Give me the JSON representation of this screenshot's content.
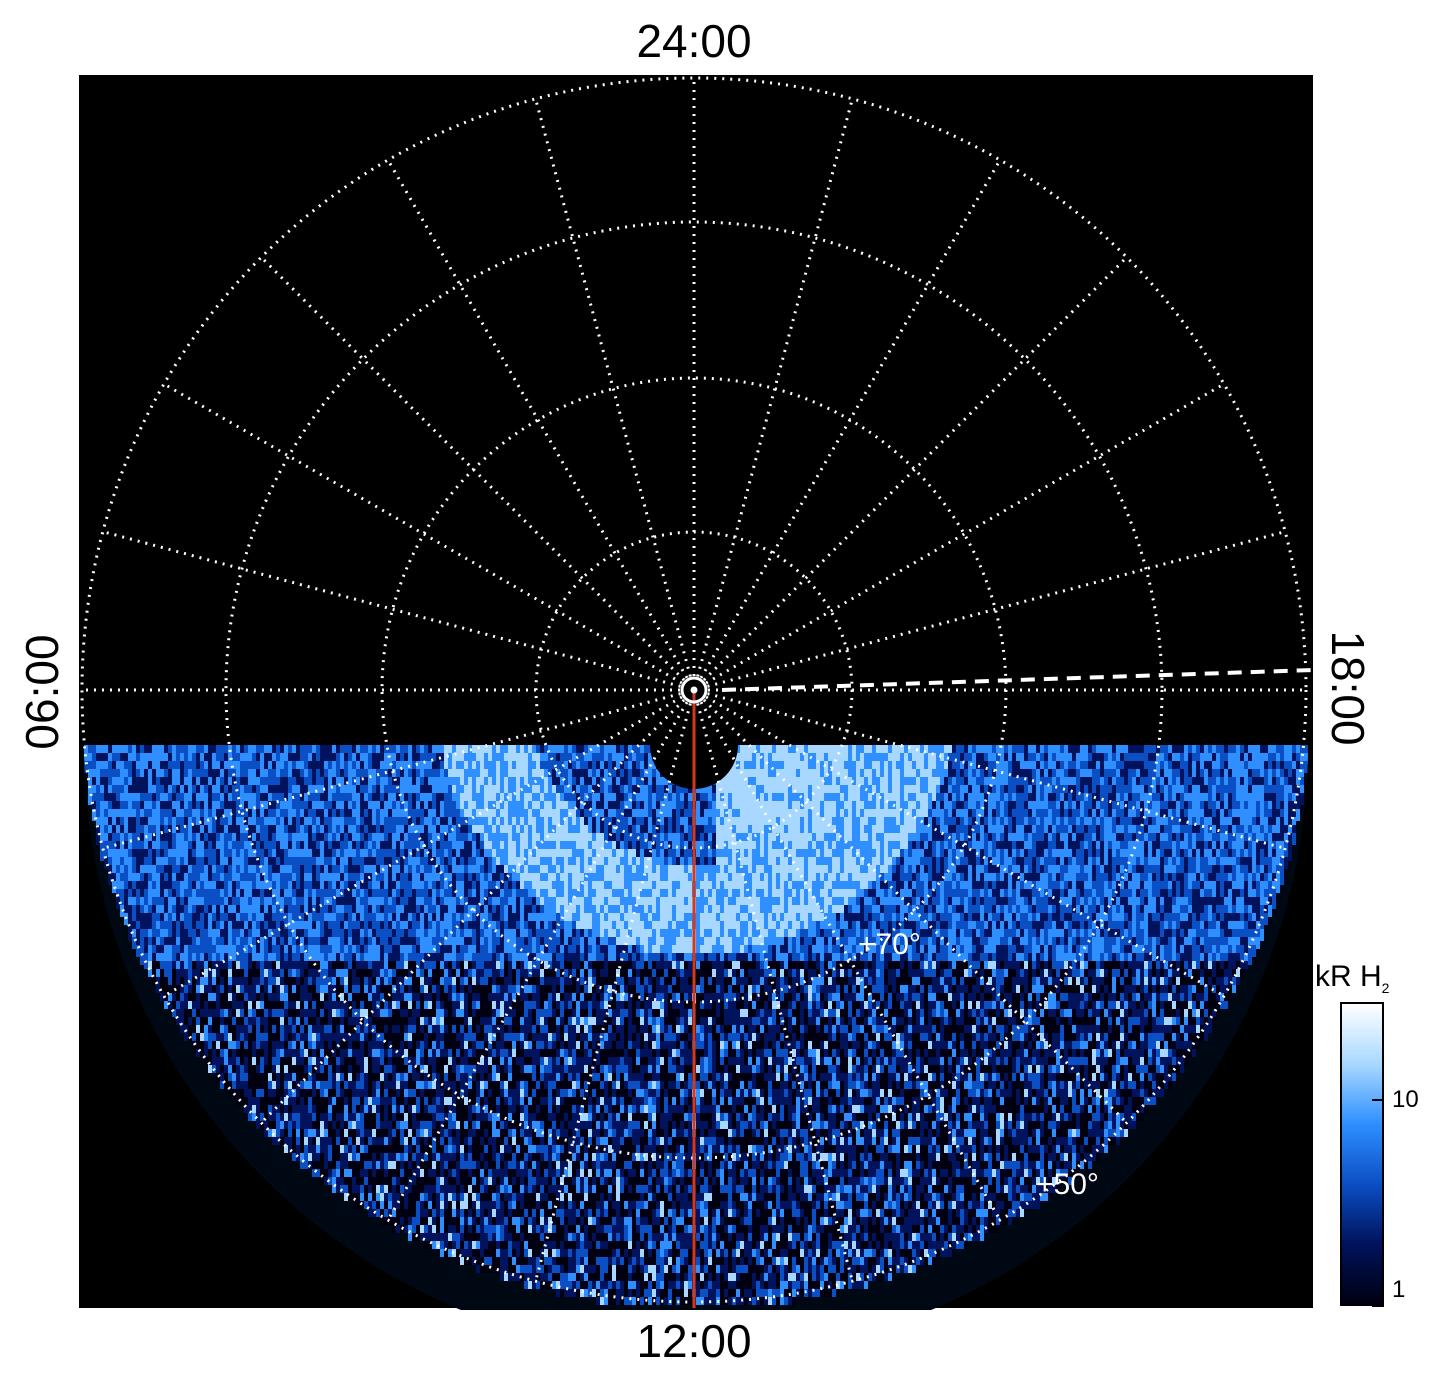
{
  "figure": {
    "time_labels": {
      "top": "24:00",
      "bottom": "12:00",
      "left": "06:00",
      "right": "18:00"
    },
    "latitude_labels": {
      "inner": "+70°",
      "outer": "+50°"
    },
    "colorbar": {
      "unit": "kR H",
      "subscript": "2",
      "ticks": [
        {
          "label": "10",
          "value": 10
        },
        {
          "label": "1",
          "value": 1
        }
      ],
      "range": [
        1,
        30
      ],
      "scale": "log",
      "colors": [
        "#000010",
        "#00135c",
        "#0b4fc4",
        "#2f8fff",
        "#a8d8ff",
        "#ffffff"
      ]
    },
    "background_color": "#000000",
    "grid_color": "#ffffff",
    "meridian_line_color": "#d23a1c"
  }
}
